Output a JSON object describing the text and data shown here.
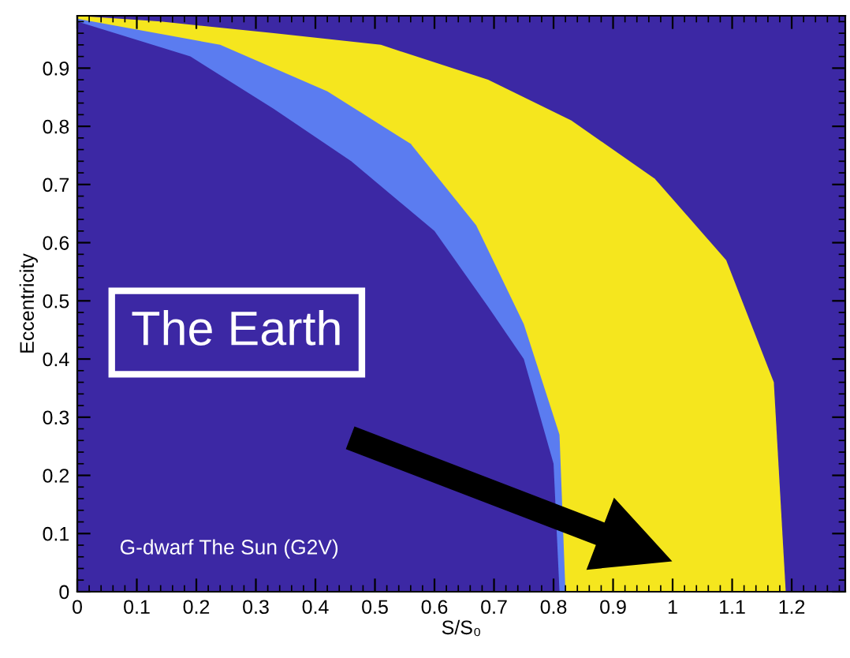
{
  "chart_data": {
    "type": "area",
    "xlabel": "S/S₀",
    "ylabel": "Eccentricity",
    "xlim": [
      0,
      1.29
    ],
    "ylim": [
      0,
      0.99
    ],
    "xticks": [
      0,
      0.1,
      0.2,
      0.3,
      0.4,
      0.5,
      0.6,
      0.7,
      0.8,
      0.9,
      1,
      1.1,
      1.2
    ],
    "yticks": [
      0,
      0.1,
      0.2,
      0.3,
      0.4,
      0.5,
      0.6,
      0.7,
      0.8,
      0.9
    ],
    "grid": false,
    "legend": false,
    "series": [
      {
        "color": "#f5e61e",
        "x": [
          0,
          0.14,
          0.33,
          0.51,
          0.69,
          0.83,
          0.97,
          1.09,
          1.17,
          1.19
        ],
        "values": [
          0.99,
          0.98,
          0.96,
          0.94,
          0.88,
          0.81,
          0.71,
          0.57,
          0.36,
          0
        ]
      },
      {
        "color": "#5b7cf0",
        "x": [
          0,
          0.24,
          0.42,
          0.56,
          0.67,
          0.75,
          0.81,
          0.82
        ],
        "values": [
          0.985,
          0.94,
          0.86,
          0.77,
          0.63,
          0.46,
          0.27,
          0
        ]
      },
      {
        "color": "#3c28a4",
        "x": [
          0,
          0.19,
          0.33,
          0.46,
          0.6,
          0.69,
          0.75,
          0.8,
          0.81
        ],
        "values": [
          0.98,
          0.92,
          0.83,
          0.74,
          0.62,
          0.49,
          0.4,
          0.22,
          0
        ]
      }
    ],
    "annotations": [
      "The Earth",
      "G-dwarf The Sun (G2V)"
    ]
  }
}
